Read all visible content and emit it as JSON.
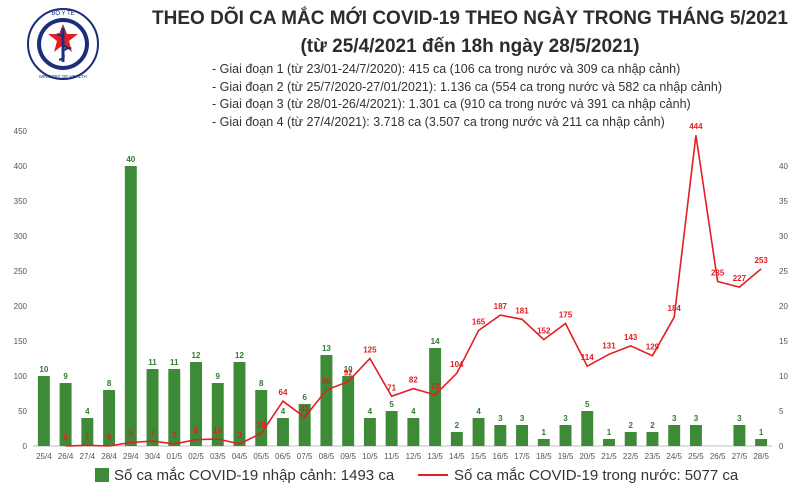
{
  "logo": {
    "top_text": "BỘ Y TẾ",
    "bottom_text": "MINISTRY OF HEALTH"
  },
  "title": "THEO DÕI CA MẮC MỚI COVID-19 THEO NGÀY TRONG THÁNG 5/2021",
  "subtitle": "(từ 25/4/2021 đến 18h ngày 28/5/2021)",
  "phases": [
    "- Giai đoạn 1 (từ 23/01-24/7/2020): 415 ca (106 ca trong nước và 309 ca nhập cảnh)",
    "- Giai đoạn 2 (từ 25/7/2020-27/01/2021): 1.136 ca (554 ca trong nước và 582 ca nhập cảnh)",
    "- Giai đoạn 3 (từ 28/01-26/4/2021): 1.301 ca (910 ca trong nước và 391 ca nhập cảnh)",
    "- Giai đoạn 4 (từ 27/4/2021): 3.718 ca (3.507 ca trong nước và 211 ca nhập cảnh)"
  ],
  "legend": {
    "bars": "Số ca mắc COVID-19 nhập cảnh: 1493 ca",
    "line": "Số ca mắc COVID-19 trong nước: 5077 ca"
  },
  "colors": {
    "bar": "#3d8b37",
    "line": "#e31e24",
    "bar_label": "#2e7d32",
    "line_label": "#e31e24"
  },
  "chart_data": {
    "type": "bar+line",
    "categories": [
      "25/4",
      "26/4",
      "27/4",
      "28/4",
      "29/4",
      "30/4",
      "01/5",
      "02/5",
      "03/5",
      "04/5",
      "05/5",
      "06/5",
      "07/5",
      "08/5",
      "09/5",
      "10/5",
      "11/5",
      "12/5",
      "13/5",
      "14/5",
      "15/5",
      "16/5",
      "17/5",
      "18/5",
      "19/5",
      "20/5",
      "21/5",
      "22/5",
      "23/5",
      "24/5",
      "25/5",
      "26/5",
      "27/5",
      "28/5"
    ],
    "series": [
      {
        "name": "Số ca mắc COVID-19 nhập cảnh: 1493 ca",
        "type": "bar",
        "axis": "right",
        "values": [
          10,
          9,
          4,
          8,
          40,
          11,
          11,
          12,
          9,
          12,
          8,
          4,
          6,
          13,
          10,
          4,
          5,
          4,
          14,
          2,
          4,
          3,
          3,
          1,
          3,
          5,
          1,
          2,
          2,
          3,
          3,
          0,
          3,
          1
        ],
        "labels": [
          "10",
          "9",
          "4",
          "8",
          "40",
          "11",
          "11",
          "12",
          "9",
          "12",
          "8",
          "4",
          "6",
          "13",
          "10",
          "4",
          "5",
          "4",
          "14",
          "2",
          "4",
          "3",
          "3",
          "1",
          "3",
          "5",
          "1",
          "2",
          "2",
          "3",
          "3",
          "",
          "3",
          "1"
        ]
      },
      {
        "name": "Số ca mắc COVID-19 trong nước: 5077 ca",
        "type": "line",
        "axis": "left",
        "values": [
          null,
          0,
          1,
          0,
          5,
          7,
          3,
          9,
          10,
          3,
          18,
          64,
          41,
          80,
          92,
          125,
          71,
          82,
          73,
          104,
          165,
          187,
          181,
          152,
          175,
          114,
          131,
          143,
          129,
          184,
          444,
          235,
          227,
          253
        ],
        "labels": [
          "",
          "0",
          "1",
          "0",
          "5",
          "7",
          "3",
          "9",
          "10",
          "3",
          "18",
          "64",
          "41",
          "80",
          "92",
          "125",
          "71",
          "82",
          "73",
          "104",
          "165",
          "187",
          "181",
          "152",
          "175",
          "114",
          "131",
          "143",
          "129",
          "184",
          "444",
          "235",
          "227",
          "253"
        ]
      }
    ],
    "left_axis": {
      "ylim": [
        0,
        450
      ],
      "ticks": [
        "0",
        "50",
        "100",
        "150",
        "200",
        "250",
        "300",
        "350",
        "400",
        "450"
      ]
    },
    "right_axis": {
      "ylim": [
        0,
        45
      ],
      "ticks": [
        "0",
        "5",
        "10",
        "15",
        "20",
        "25",
        "30",
        "35",
        "40"
      ]
    },
    "grid": false,
    "legend_position": "bottom"
  }
}
